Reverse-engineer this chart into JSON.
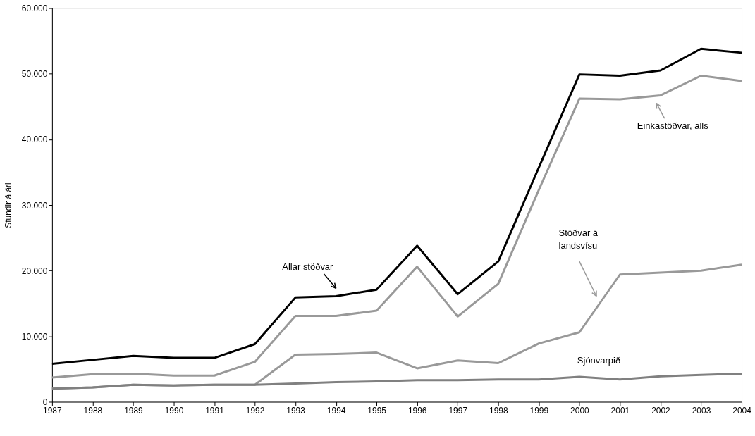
{
  "chart_data": {
    "type": "line",
    "ylabel": "Stundir á ári",
    "x": [
      1987,
      1988,
      1989,
      1990,
      1991,
      1992,
      1993,
      1994,
      1995,
      1996,
      1997,
      1998,
      1999,
      2000,
      2001,
      2002,
      2003,
      2004
    ],
    "series": [
      {
        "name": "Allar stöðvar",
        "color": "#000000",
        "values": [
          5800,
          6400,
          7000,
          6700,
          6700,
          8800,
          15900,
          16100,
          17100,
          23800,
          16400,
          21400,
          35700,
          49900,
          49700,
          50500,
          53800,
          53200
        ]
      },
      {
        "name": "Einkastöðvar, alls",
        "color": "#999999",
        "values": [
          3700,
          4200,
          4300,
          4000,
          4000,
          6100,
          13100,
          13100,
          13900,
          20600,
          13000,
          18000,
          32300,
          46200,
          46100,
          46700,
          49700,
          48900
        ]
      },
      {
        "name": "Stöðvar á landsvísu",
        "color": "#999999",
        "values": [
          2000,
          2200,
          2600,
          2500,
          2600,
          2600,
          7200,
          7300,
          7500,
          5100,
          6300,
          5900,
          8900,
          10600,
          19400,
          19700,
          20000,
          20900
        ]
      },
      {
        "name": "Sjónvarpið",
        "color": "#808080",
        "values": [
          2000,
          2200,
          2600,
          2500,
          2600,
          2600,
          2800,
          3000,
          3100,
          3300,
          3300,
          3400,
          3400,
          3800,
          3400,
          3900,
          4100,
          4300
        ]
      }
    ],
    "xlim": [
      1987,
      2004
    ],
    "xticks": [
      1987,
      1988,
      1989,
      1990,
      1991,
      1992,
      1993,
      1994,
      1995,
      1996,
      1997,
      1998,
      1999,
      2000,
      2001,
      2002,
      2003,
      2004
    ],
    "ylim": [
      0,
      60000
    ],
    "yticks": [
      0,
      {
        "value": 10000,
        "label": "10.000"
      },
      {
        "value": 20000,
        "label": "20.000"
      },
      {
        "value": 30000,
        "label": "30.000"
      },
      {
        "value": 40000,
        "label": "40.000"
      },
      {
        "value": 50000,
        "label": "50.000"
      },
      {
        "value": 60000,
        "label": "60.000"
      }
    ],
    "grid": false,
    "marker": "none",
    "line_style": "solid"
  }
}
